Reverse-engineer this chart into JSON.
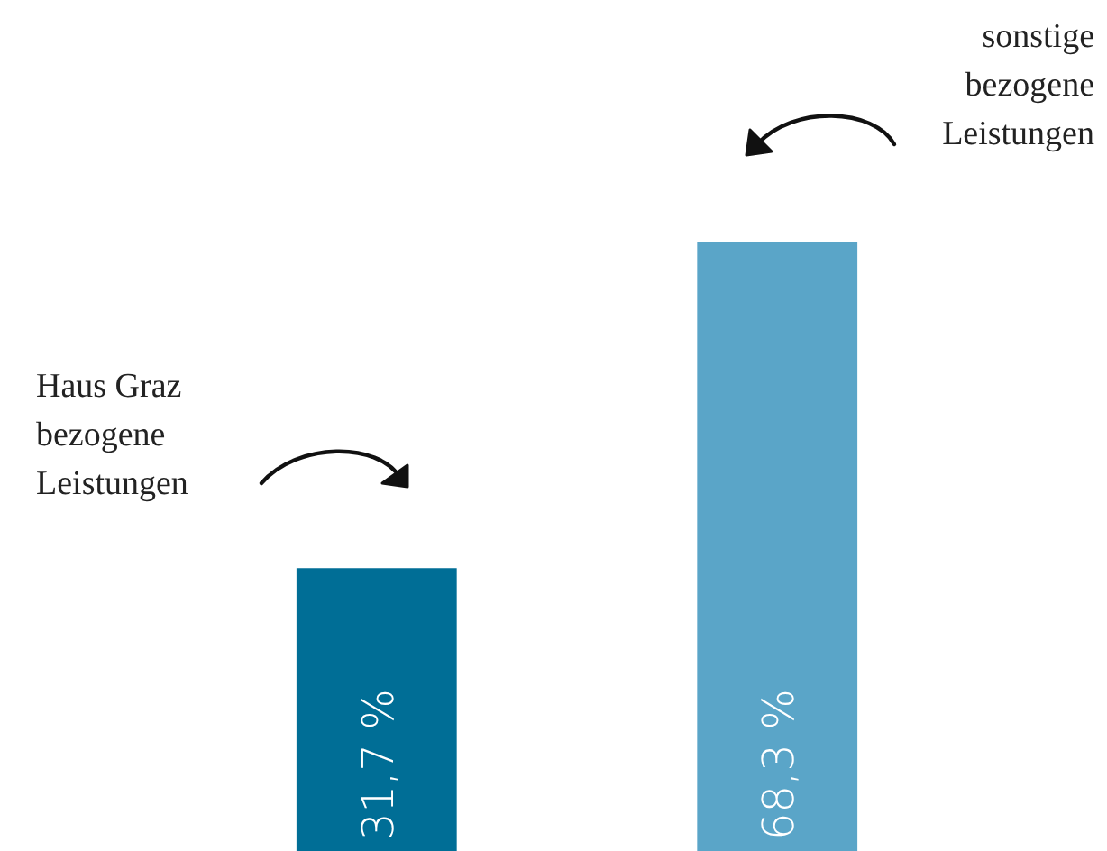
{
  "chart_data": {
    "type": "bar",
    "categories": [
      null,
      null
    ],
    "values": [
      31.7,
      68.3
    ],
    "colors": [
      "#006e96",
      "#5aa5c8"
    ],
    "value_labels": [
      "31,7 %",
      "68,3 %"
    ],
    "annotations": [
      "Haus Graz\nbezogene\nLeistungen",
      "sonstige\nbezogene\nLeistungen"
    ]
  }
}
